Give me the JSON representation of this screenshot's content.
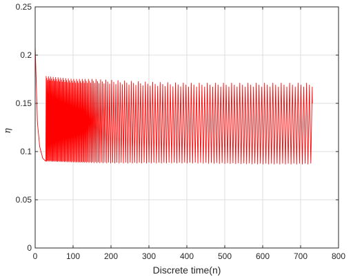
{
  "chart_data": {
    "type": "line",
    "title": "",
    "xlabel": "Discrete time(n)",
    "ylabel": "η",
    "xlim": [
      0,
      800
    ],
    "ylim": [
      0,
      0.25
    ],
    "xticks": [
      0,
      100,
      200,
      300,
      400,
      500,
      600,
      700,
      800
    ],
    "yticks": [
      0,
      0.05,
      0.1,
      0.15,
      0.2,
      0.25
    ],
    "xtick_labels": [
      "0",
      "100",
      "200",
      "300",
      "400",
      "500",
      "600",
      "700",
      "800"
    ],
    "ytick_labels": [
      "0",
      "0.05",
      "0.1",
      "0.15",
      "0.2",
      "0.25"
    ],
    "grid": true,
    "legend": "none",
    "series": [
      {
        "color": "#ff0000",
        "x_range": [
          0,
          731
        ],
        "initial_peak": 0.21,
        "initial_decay": [
          [
            0,
            0.21
          ],
          [
            6,
            0.13
          ],
          [
            12,
            0.105
          ],
          [
            20,
            0.093
          ],
          [
            28,
            0.09
          ]
        ],
        "envelope_upper": [
          [
            28,
            0.178
          ],
          [
            50,
            0.177
          ],
          [
            100,
            0.175
          ],
          [
            150,
            0.175
          ],
          [
            200,
            0.174
          ],
          [
            300,
            0.172
          ],
          [
            400,
            0.171
          ],
          [
            500,
            0.171
          ],
          [
            600,
            0.171
          ],
          [
            700,
            0.171
          ],
          [
            731,
            0.171
          ]
        ],
        "envelope_lower": [
          [
            28,
            0.09
          ],
          [
            100,
            0.089
          ],
          [
            200,
            0.088
          ],
          [
            400,
            0.088
          ],
          [
            600,
            0.087
          ],
          [
            731,
            0.087
          ]
        ],
        "oscillation_period": [
          [
            28,
            2.0
          ],
          [
            130,
            2.6
          ],
          [
            200,
            5.5
          ],
          [
            300,
            6.5
          ],
          [
            400,
            7.0
          ],
          [
            731,
            7.5
          ]
        ],
        "final_value": 0.15
      }
    ]
  }
}
